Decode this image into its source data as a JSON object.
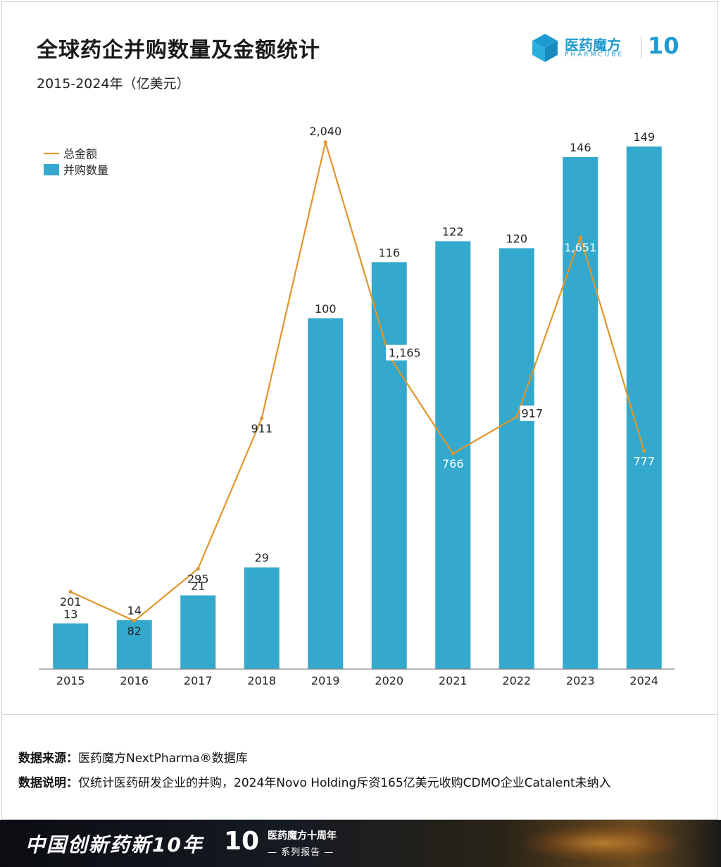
{
  "header": {
    "title": "全球药企并购数量及金额统计",
    "subtitle": "2015-2024年（亿美元）"
  },
  "brand": {
    "name": "医药魔方",
    "english": "PHARMCUBE",
    "ten": "10",
    "color": "#1f9bd1"
  },
  "chart_data": {
    "type": "bar",
    "categories": [
      "2015",
      "2016",
      "2017",
      "2018",
      "2019",
      "2020",
      "2021",
      "2022",
      "2023",
      "2024"
    ],
    "series": [
      {
        "name": "并购数量",
        "type": "bar",
        "color": "#34a9cd",
        "values": [
          13,
          14,
          21,
          29,
          100,
          116,
          122,
          120,
          146,
          149
        ],
        "labels": [
          "13",
          "14",
          "21",
          "29",
          "100",
          "116",
          "122",
          "120",
          "146",
          "149"
        ]
      },
      {
        "name": "总金额",
        "type": "line",
        "color": "#e0962a",
        "values": [
          201,
          82,
          295,
          911,
          2040,
          1165,
          766,
          917,
          1651,
          777
        ],
        "labels": [
          "201",
          "82",
          "295",
          "911",
          "2,040",
          "1,165",
          "766",
          "917",
          "1,651",
          "777"
        ]
      }
    ],
    "legend": [
      "总金额",
      "并购数量"
    ],
    "legend_position": "top-left",
    "grid": false
  },
  "notes": {
    "source_label": "数据来源：",
    "source_text": "医药魔方NextPharma®数据库",
    "explain_label": "数据说明：",
    "explain_text": "仅统计医药研发企业的并购，2024年Novo Holding斥资165亿美元收购CDMO企业Catalent未纳入"
  },
  "banner": {
    "slogan": "中国创新药新10年",
    "ten": "10",
    "line1": "医药魔方十周年",
    "line2": "— 系列报告 —"
  }
}
